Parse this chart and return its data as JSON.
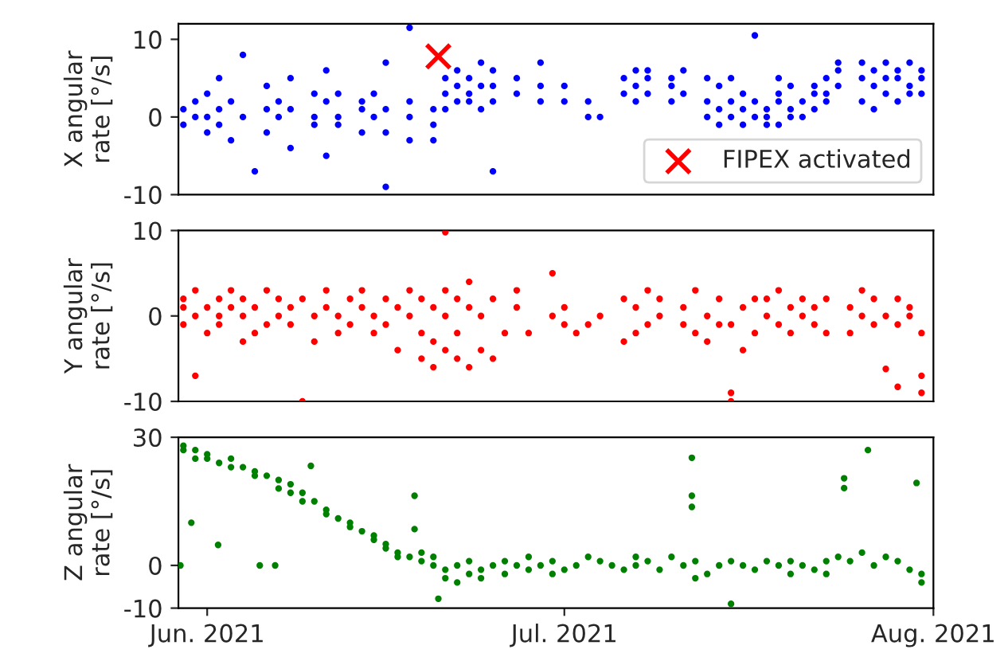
{
  "chart_data": [
    {
      "type": "scatter",
      "ylabel": "X angular\nrate [°/s]",
      "xlim": [
        "2021-05-29T14:00",
        "2021-08-01"
      ],
      "ylim": [
        -10,
        12
      ],
      "yticks": [
        -10,
        0,
        10
      ],
      "tick_labels": "y",
      "grid": false,
      "legend": "bottom right",
      "marker": "circle",
      "series": [
        {
          "color": "#0000ff",
          "x": [
            "2021-05-30",
            "2021-05-30",
            "2021-05-31",
            "2021-05-31",
            "2021-06-01",
            "2021-06-01",
            "2021-06-01",
            "2021-06-02",
            "2021-06-02",
            "2021-06-02",
            "2021-06-03",
            "2021-06-03",
            "2021-06-04",
            "2021-06-04",
            "2021-06-05",
            "2021-06-06",
            "2021-06-06",
            "2021-06-06",
            "2021-06-07",
            "2021-06-07",
            "2021-06-08",
            "2021-06-08",
            "2021-06-08",
            "2021-06-10",
            "2021-06-10",
            "2021-06-10",
            "2021-06-11",
            "2021-06-11",
            "2021-06-11",
            "2021-06-12",
            "2021-06-12",
            "2021-06-12",
            "2021-06-14",
            "2021-06-14",
            "2021-06-14",
            "2021-06-15",
            "2021-06-15",
            "2021-06-16",
            "2021-06-16",
            "2021-06-16",
            "2021-06-16",
            "2021-06-18",
            "2021-06-18",
            "2021-06-18",
            "2021-06-18",
            "2021-06-20",
            "2021-06-20",
            "2021-06-20",
            "2021-06-21",
            "2021-06-21",
            "2021-06-21",
            "2021-06-22",
            "2021-06-22",
            "2021-06-22",
            "2021-06-23",
            "2021-06-23",
            "2021-06-23",
            "2021-06-24",
            "2021-06-24",
            "2021-06-24",
            "2021-06-25",
            "2021-06-25",
            "2021-06-25",
            "2021-06-25",
            "2021-06-27",
            "2021-06-27",
            "2021-06-29",
            "2021-06-29",
            "2021-06-29",
            "2021-07-01",
            "2021-07-01",
            "2021-07-03",
            "2021-07-03",
            "2021-07-04",
            "2021-07-06",
            "2021-07-06",
            "2021-07-07",
            "2021-07-07",
            "2021-07-07",
            "2021-07-08",
            "2021-07-08",
            "2021-07-08",
            "2021-07-10",
            "2021-07-10",
            "2021-07-10",
            "2021-07-11",
            "2021-07-11",
            "2021-07-13",
            "2021-07-13",
            "2021-07-13",
            "2021-07-14",
            "2021-07-14",
            "2021-07-14",
            "2021-07-15",
            "2021-07-15",
            "2021-07-15",
            "2021-07-16",
            "2021-07-16",
            "2021-07-16",
            "2021-07-17",
            "2021-07-17",
            "2021-07-17",
            "2021-07-18",
            "2021-07-18",
            "2021-07-18",
            "2021-07-19",
            "2021-07-19",
            "2021-07-19",
            "2021-07-19",
            "2021-07-20",
            "2021-07-20",
            "2021-07-20",
            "2021-07-21",
            "2021-07-21",
            "2021-07-22",
            "2021-07-22",
            "2021-07-22",
            "2021-07-23",
            "2021-07-23",
            "2021-07-23",
            "2021-07-24",
            "2021-07-24",
            "2021-07-24",
            "2021-07-26",
            "2021-07-26",
            "2021-07-26",
            "2021-07-27",
            "2021-07-27",
            "2021-07-27",
            "2021-07-28",
            "2021-07-28",
            "2021-07-28",
            "2021-07-29",
            "2021-07-29",
            "2021-07-29",
            "2021-07-30",
            "2021-07-30",
            "2021-07-30",
            "2021-07-31",
            "2021-07-31",
            "2021-07-31"
          ],
          "values": [
            1,
            -1,
            2,
            0,
            0,
            3,
            -2,
            1,
            -1,
            5,
            2,
            -3,
            0,
            8,
            -7,
            1,
            -2,
            4,
            0,
            2,
            1,
            -4,
            5,
            0,
            3,
            -1,
            2,
            6,
            -5,
            0,
            -1,
            3,
            1,
            -2,
            2,
            0,
            3,
            -2,
            1,
            -9,
            7,
            -3,
            2,
            0,
            11.5,
            -1,
            1,
            -3,
            3,
            1,
            5,
            2,
            4,
            6,
            3,
            5,
            2,
            4,
            1,
            7,
            4,
            6,
            2,
            -7,
            5,
            3,
            4,
            7,
            2,
            4,
            2,
            2,
            0,
            0,
            5,
            3,
            6,
            4,
            2,
            5,
            3,
            6,
            4,
            5,
            2,
            6,
            3,
            5,
            2,
            0,
            4,
            1,
            -1,
            2,
            5,
            0,
            1,
            -1,
            3,
            2,
            0,
            10.5,
            1,
            0,
            -1,
            3,
            -1,
            5,
            2,
            1,
            4,
            0,
            2,
            0,
            4,
            1,
            3,
            5,
            3,
            2,
            6,
            7,
            4,
            5,
            2,
            7,
            6,
            4,
            1,
            7,
            3,
            5,
            5,
            6,
            2,
            4,
            7,
            3,
            5,
            3,
            6
          ]
        },
        {
          "name": "FIPEX activated",
          "color": "#ff0000",
          "marker": "cross",
          "x": [
            "2021-06-20T10:00"
          ],
          "values": [
            7.8
          ]
        }
      ]
    },
    {
      "type": "scatter",
      "ylabel": "Y angular\nrate [°/s]",
      "xlim": [
        "2021-05-29T14:00",
        "2021-08-01"
      ],
      "ylim": [
        -10,
        10
      ],
      "yticks": [
        -10,
        0,
        10
      ],
      "tick_labels": "y",
      "grid": false,
      "marker": "circle",
      "series": [
        {
          "color": "#ff0000",
          "x": [
            "2021-05-30",
            "2021-05-30",
            "2021-05-30",
            "2021-05-31",
            "2021-05-31",
            "2021-05-31",
            "2021-06-01",
            "2021-06-01",
            "2021-06-02",
            "2021-06-02",
            "2021-06-02",
            "2021-06-03",
            "2021-06-03",
            "2021-06-04",
            "2021-06-04",
            "2021-06-04",
            "2021-06-05",
            "2021-06-05",
            "2021-06-06",
            "2021-06-06",
            "2021-06-07",
            "2021-06-07",
            "2021-06-08",
            "2021-06-08",
            "2021-06-09",
            "2021-06-09",
            "2021-06-10",
            "2021-06-10",
            "2021-06-11",
            "2021-06-11",
            "2021-06-12",
            "2021-06-12",
            "2021-06-13",
            "2021-06-13",
            "2021-06-14",
            "2021-06-14",
            "2021-06-15",
            "2021-06-15",
            "2021-06-16",
            "2021-06-16",
            "2021-06-17",
            "2021-06-17",
            "2021-06-18",
            "2021-06-18",
            "2021-06-19",
            "2021-06-19",
            "2021-06-19",
            "2021-06-20",
            "2021-06-20",
            "2021-06-20",
            "2021-06-21",
            "2021-06-21",
            "2021-06-21",
            "2021-06-21",
            "2021-06-22",
            "2021-06-22",
            "2021-06-22",
            "2021-06-23",
            "2021-06-23",
            "2021-06-23",
            "2021-06-24",
            "2021-06-24",
            "2021-06-25",
            "2021-06-25",
            "2021-06-26",
            "2021-06-27",
            "2021-06-27",
            "2021-06-28",
            "2021-06-30",
            "2021-06-30",
            "2021-07-01",
            "2021-07-01",
            "2021-07-02",
            "2021-07-03",
            "2021-07-04",
            "2021-07-06",
            "2021-07-06",
            "2021-07-07",
            "2021-07-07",
            "2021-07-08",
            "2021-07-08",
            "2021-07-09",
            "2021-07-09",
            "2021-07-11",
            "2021-07-11",
            "2021-07-12",
            "2021-07-12",
            "2021-07-13",
            "2021-07-13",
            "2021-07-14",
            "2021-07-14",
            "2021-07-15",
            "2021-07-15",
            "2021-07-15",
            "2021-07-16",
            "2021-07-16",
            "2021-07-17",
            "2021-07-17",
            "2021-07-18",
            "2021-07-18",
            "2021-07-19",
            "2021-07-19",
            "2021-07-20",
            "2021-07-20",
            "2021-07-21",
            "2021-07-21",
            "2021-07-22",
            "2021-07-22",
            "2021-07-23",
            "2021-07-23",
            "2021-07-25",
            "2021-07-25",
            "2021-07-26",
            "2021-07-26",
            "2021-07-27",
            "2021-07-27",
            "2021-07-28",
            "2021-07-28",
            "2021-07-29",
            "2021-07-29",
            "2021-07-29",
            "2021-07-30",
            "2021-07-30",
            "2021-07-31",
            "2021-07-31",
            "2021-07-31"
          ],
          "values": [
            1,
            -1,
            2,
            0,
            -7,
            3,
            1,
            -2,
            2,
            0,
            -1,
            3,
            1,
            -3,
            0,
            2,
            1,
            -2,
            3,
            -1,
            0,
            2,
            -1,
            1,
            -10,
            2,
            0,
            -3,
            1,
            3,
            -2,
            0,
            2,
            -1,
            1,
            3,
            0,
            -2,
            -1,
            2,
            -4,
            1,
            0,
            3,
            -2,
            2,
            -5,
            1,
            -3,
            -6,
            0,
            -4,
            3,
            9.8,
            -5,
            -2,
            2,
            1,
            -6,
            4,
            0,
            -4,
            2,
            -5,
            -2,
            1,
            3,
            -2,
            5,
            0,
            1,
            -1,
            -2,
            -1,
            0,
            2,
            -3,
            1,
            -2,
            3,
            -1,
            0,
            2,
            -1,
            1,
            -2,
            3,
            0,
            -3,
            -1,
            2,
            -1,
            -9,
            -10,
            1,
            -4,
            2,
            -2,
            0,
            2,
            -1,
            3,
            1,
            -2,
            0,
            2,
            -1,
            1,
            2,
            -2,
            1,
            -2,
            0,
            3,
            -1,
            2,
            0,
            -6.2,
            -8.3,
            2,
            -1,
            0,
            1,
            -2,
            -7,
            -9
          ]
        }
      ]
    },
    {
      "type": "scatter",
      "ylabel": "Z angular\nrate [°/s]",
      "xlim": [
        "2021-05-29T14:00",
        "2021-08-01"
      ],
      "ylim": [
        -10,
        30
      ],
      "yticks": [
        -10,
        0,
        30
      ],
      "xticks": [
        {
          "value": "2021-06-01",
          "label": "Jun. 2021"
        },
        {
          "value": "2021-07-01",
          "label": "Jul. 2021"
        },
        {
          "value": "2021-08-01",
          "label": "Aug. 2021"
        }
      ],
      "grid": false,
      "marker": "circle",
      "series": [
        {
          "color": "#008000",
          "x": [
            "2021-05-29T18:00",
            "2021-05-30",
            "2021-05-30",
            "2021-05-31",
            "2021-05-31",
            "2021-05-30T16:00",
            "2021-06-01",
            "2021-06-01",
            "2021-06-02",
            "2021-06-01T22:00",
            "2021-06-03",
            "2021-06-03",
            "2021-06-04",
            "2021-06-05",
            "2021-06-05",
            "2021-06-05T10:00",
            "2021-06-06",
            "2021-06-06T17:00",
            "2021-06-07",
            "2021-06-07",
            "2021-06-08",
            "2021-06-08",
            "2021-06-09",
            "2021-06-09",
            "2021-06-09T17:00",
            "2021-06-10",
            "2021-06-11",
            "2021-06-11",
            "2021-06-12",
            "2021-06-13",
            "2021-06-13",
            "2021-06-14",
            "2021-06-15",
            "2021-06-15",
            "2021-06-16",
            "2021-06-16",
            "2021-06-17",
            "2021-06-17",
            "2021-06-18",
            "2021-06-18T10:00",
            "2021-06-18T10:00",
            "2021-06-19",
            "2021-06-19",
            "2021-06-20",
            "2021-06-20",
            "2021-06-20T10:00",
            "2021-06-21",
            "2021-06-21",
            "2021-06-22",
            "2021-06-22",
            "2021-06-23",
            "2021-06-23",
            "2021-06-24",
            "2021-06-24",
            "2021-06-25",
            "2021-06-26",
            "2021-06-26",
            "2021-06-27",
            "2021-06-28",
            "2021-06-28",
            "2021-06-29",
            "2021-06-30",
            "2021-06-30",
            "2021-07-01",
            "2021-07-02",
            "2021-07-03",
            "2021-07-04",
            "2021-07-05",
            "2021-07-06",
            "2021-07-07",
            "2021-07-07",
            "2021-07-08",
            "2021-07-09",
            "2021-07-10",
            "2021-07-11",
            "2021-07-11T17:00",
            "2021-07-11T17:00",
            "2021-07-11T17:00",
            "2021-07-12",
            "2021-07-12",
            "2021-07-13",
            "2021-07-14",
            "2021-07-15",
            "2021-07-15",
            "2021-07-16",
            "2021-07-17",
            "2021-07-18",
            "2021-07-19",
            "2021-07-20",
            "2021-07-20",
            "2021-07-21",
            "2021-07-22",
            "2021-07-23",
            "2021-07-23",
            "2021-07-24",
            "2021-07-24T12:00",
            "2021-07-24T12:00",
            "2021-07-25",
            "2021-07-26",
            "2021-07-26T12:00",
            "2021-07-27",
            "2021-07-28",
            "2021-07-29",
            "2021-07-30",
            "2021-07-30T14:00",
            "2021-07-31",
            "2021-07-31"
          ],
          "values": [
            0,
            28,
            27,
            27,
            25,
            10,
            26,
            25,
            24,
            4.8,
            25,
            23,
            23,
            22,
            21,
            0,
            21,
            0,
            20,
            18,
            19,
            17,
            17,
            15,
            23.3,
            15,
            13,
            12,
            11,
            10,
            9,
            8,
            7,
            6,
            5,
            4,
            3,
            2,
            2,
            16.3,
            8.5,
            1,
            3,
            0,
            2,
            -7.8,
            -1,
            -3,
            0,
            -4,
            -2,
            1,
            -1,
            -3,
            0,
            -2,
            1,
            0,
            -1,
            2,
            0,
            1,
            -2,
            -1,
            0,
            2,
            1,
            0,
            -1,
            0,
            2,
            1,
            -1,
            2,
            0,
            25.2,
            16.3,
            13.7,
            1,
            -3,
            -2,
            0,
            -9,
            1,
            0,
            -1,
            1,
            0,
            -2,
            1,
            0,
            -1,
            1,
            -2,
            2,
            20.4,
            18.1,
            1,
            3,
            27,
            0,
            2,
            1,
            -1,
            19.3,
            -2,
            -4
          ]
        }
      ]
    }
  ]
}
